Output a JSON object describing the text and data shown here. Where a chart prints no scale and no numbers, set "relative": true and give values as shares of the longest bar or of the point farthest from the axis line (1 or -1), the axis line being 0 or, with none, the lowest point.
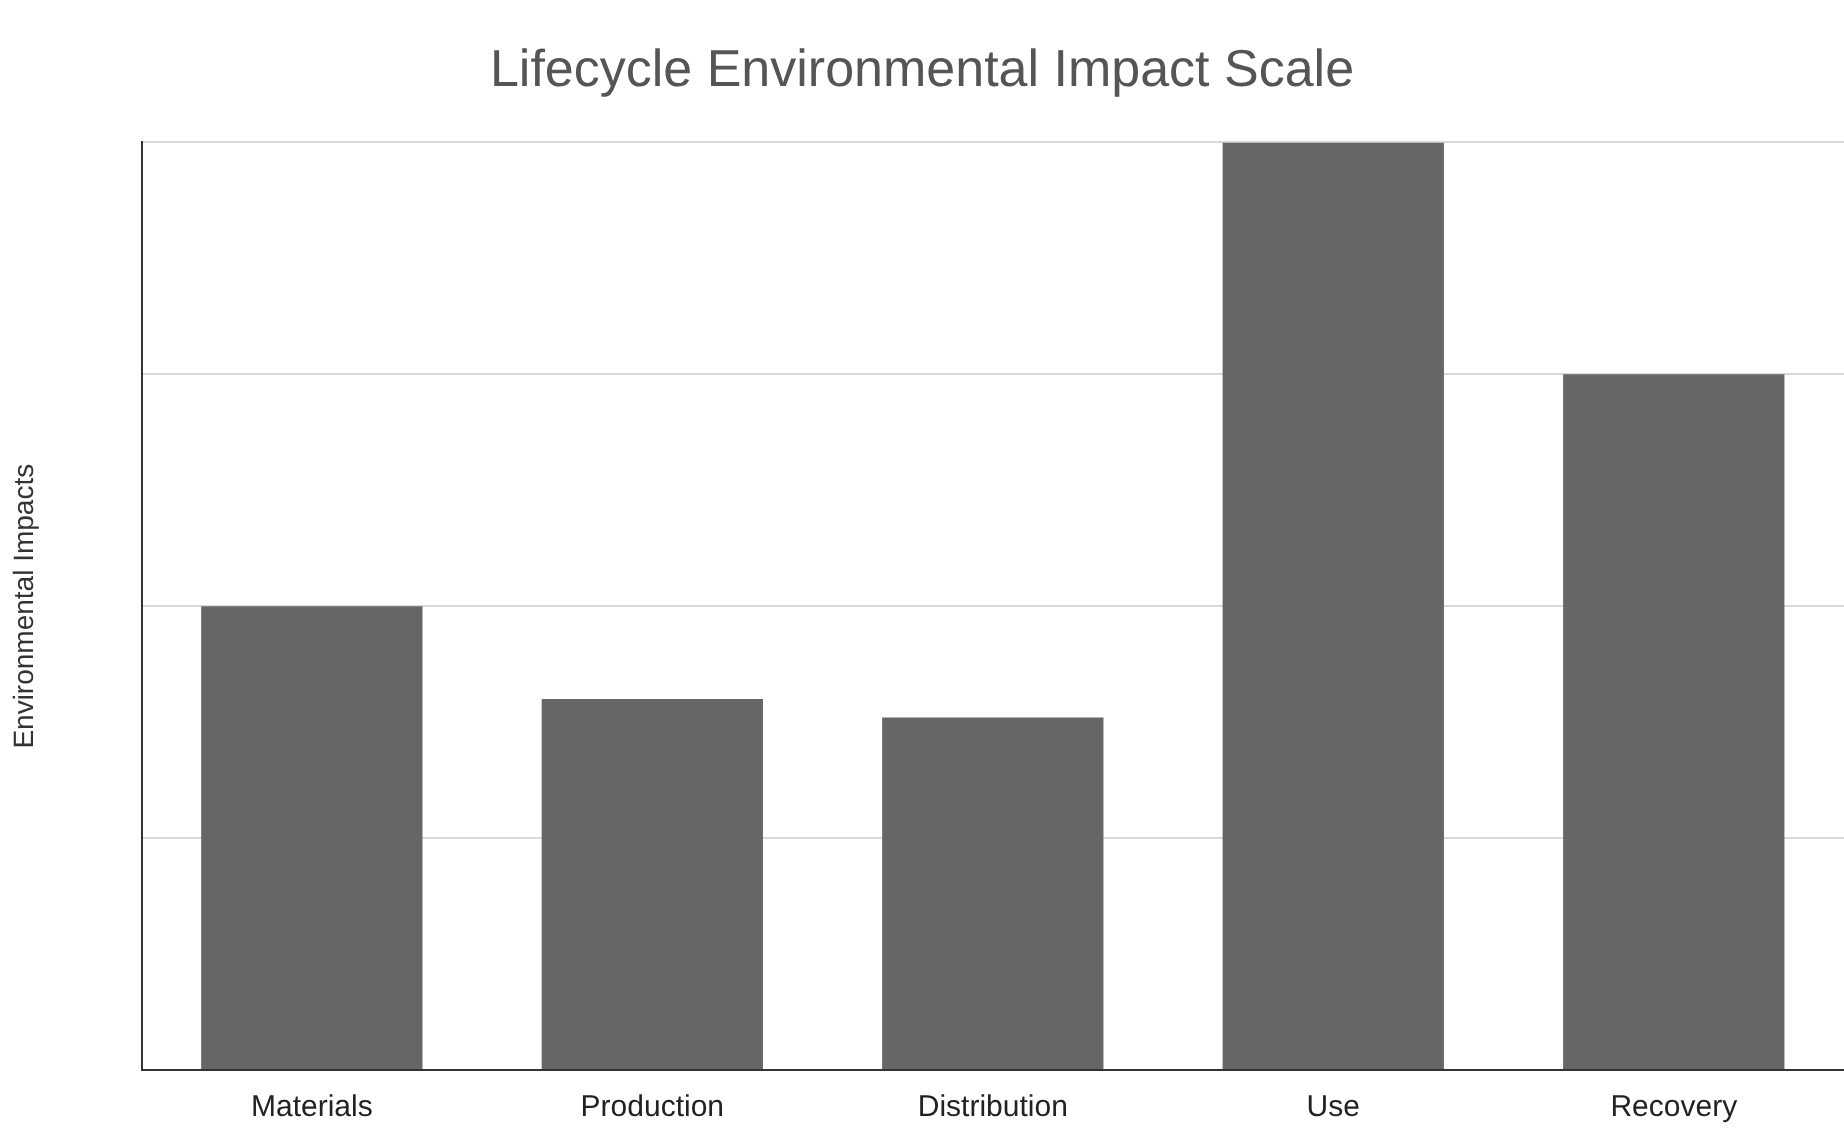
{
  "chart_data": {
    "type": "bar",
    "title": "Lifecycle Environmental Impact Scale",
    "ylabel": "Environmental Impacts",
    "categories": [
      "Materials",
      "Production",
      "Distribution",
      "Use",
      "Recovery"
    ],
    "values": [
      0.5,
      0.4,
      0.38,
      1,
      0.75
    ],
    "color": "#666666",
    "relative": true,
    "grid": "y",
    "legend": false
  }
}
